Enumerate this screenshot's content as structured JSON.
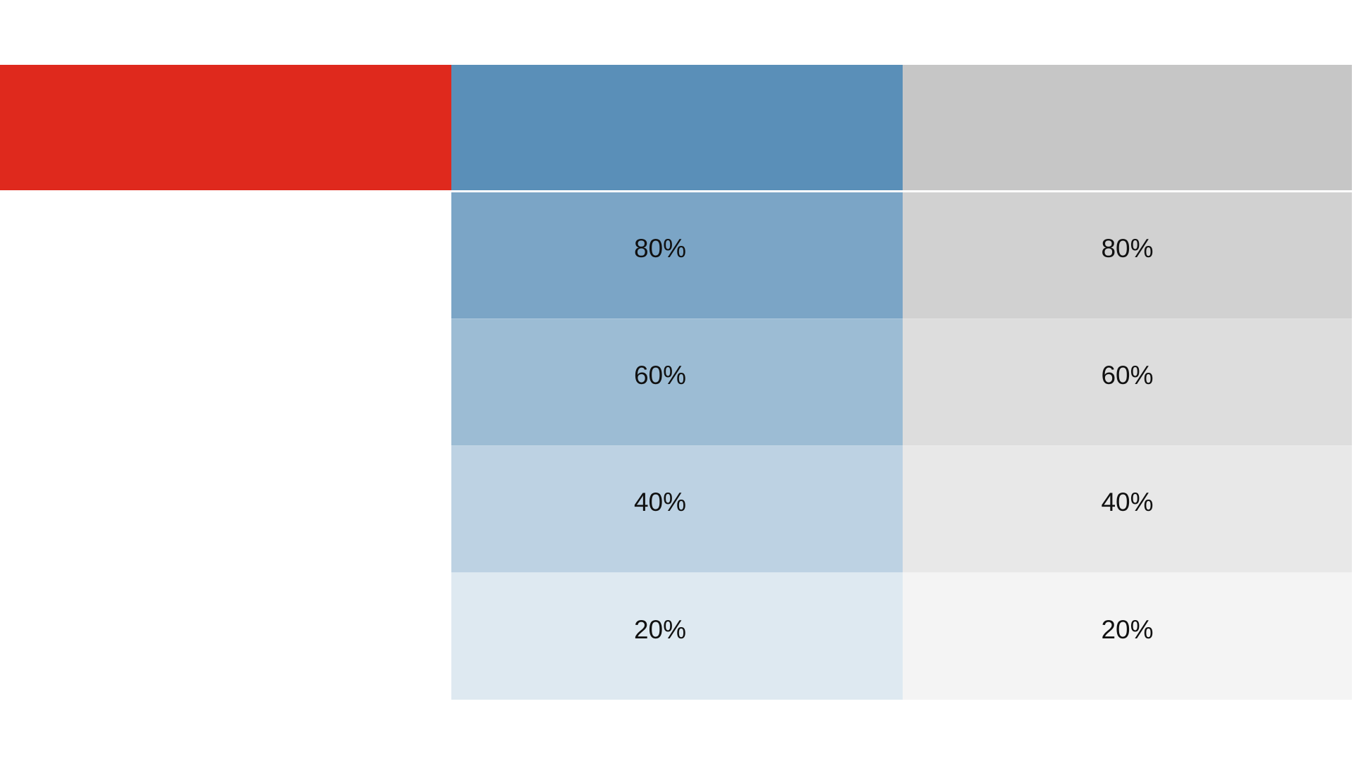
{
  "canvas": {
    "background": "#FFFFFF",
    "label_color": "#111111"
  },
  "chart_data": {
    "type": "table",
    "description_visible_labels": [
      "80%",
      "60%",
      "40%",
      "20%"
    ],
    "tint_levels": [
      80,
      60,
      40,
      20
    ],
    "columns": [
      {
        "name": "red",
        "base_color": "#DF291D",
        "tints": []
      },
      {
        "name": "blue",
        "base_color": "#5A8FB8",
        "tints": [
          {
            "label": "80%",
            "value": 80,
            "color": "#7BA5C6"
          },
          {
            "label": "60%",
            "value": 60,
            "color": "#9CBCD4"
          },
          {
            "label": "40%",
            "value": 40,
            "color": "#BDD2E3"
          },
          {
            "label": "20%",
            "value": 20,
            "color": "#DEE9F1"
          }
        ]
      },
      {
        "name": "gray",
        "base_color": "#C6C6C6",
        "tints": [
          {
            "label": "80%",
            "value": 80,
            "color": "#D1D1D1"
          },
          {
            "label": "60%",
            "value": 60,
            "color": "#DDDDDD"
          },
          {
            "label": "40%",
            "value": 40,
            "color": "#E8E8E8"
          },
          {
            "label": "20%",
            "value": 20,
            "color": "#F4F4F4"
          }
        ]
      }
    ]
  }
}
